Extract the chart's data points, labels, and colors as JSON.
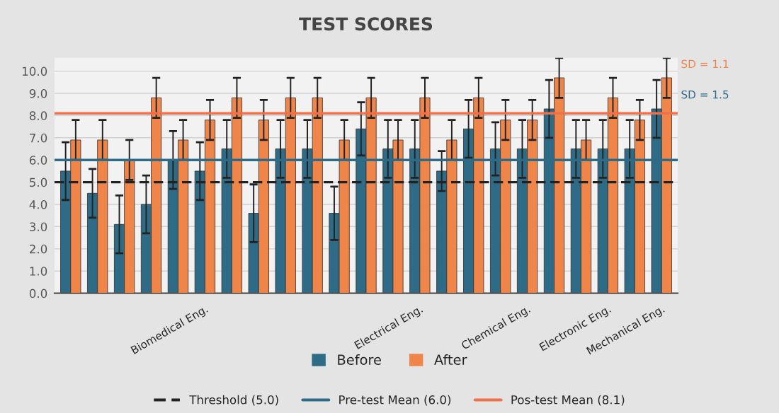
{
  "chart_data": {
    "type": "bar",
    "title": "TEST SCORES",
    "categories": [
      null,
      null,
      null,
      null,
      null,
      "Biomedical Eng.",
      null,
      null,
      null,
      null,
      null,
      null,
      null,
      "Electrical Eng.",
      null,
      null,
      null,
      "Chemical Eng.",
      null,
      null,
      "Electronic Eng.",
      null,
      "Mechanical Eng."
    ],
    "series": [
      {
        "name": "Before",
        "color": "#2e6b87",
        "values": [
          5.5,
          4.5,
          3.1,
          4.0,
          6.0,
          5.5,
          6.5,
          3.6,
          6.5,
          6.5,
          3.6,
          7.4,
          6.5,
          6.5,
          5.5,
          7.4,
          6.5,
          6.5,
          8.3,
          6.5,
          6.5,
          6.5,
          8.3
        ],
        "errors": [
          1.3,
          1.1,
          1.3,
          1.3,
          1.3,
          1.3,
          1.3,
          1.3,
          1.3,
          1.3,
          1.2,
          1.2,
          1.3,
          1.3,
          0.9,
          1.3,
          1.2,
          1.3,
          1.3,
          1.3,
          1.3,
          1.3,
          1.3
        ]
      },
      {
        "name": "After",
        "color": "#f0854a",
        "values": [
          6.9,
          6.9,
          6.0,
          8.8,
          6.9,
          7.8,
          8.8,
          7.8,
          8.8,
          8.8,
          6.9,
          8.8,
          6.9,
          8.8,
          6.9,
          8.8,
          7.8,
          7.8,
          9.7,
          6.9,
          8.8,
          7.8,
          9.7
        ],
        "errors": [
          0.9,
          0.9,
          0.9,
          0.9,
          0.9,
          0.9,
          0.9,
          0.9,
          0.9,
          0.9,
          0.9,
          0.9,
          0.9,
          0.9,
          0.9,
          0.9,
          0.9,
          0.9,
          0.9,
          0.9,
          0.9,
          0.9,
          0.9
        ]
      }
    ],
    "ylim": [
      0,
      10.6
    ],
    "yticks": [
      {
        "value": 0,
        "label": "0.0"
      },
      {
        "value": 1,
        "label": "1.0"
      },
      {
        "value": 2,
        "label": "2.0"
      },
      {
        "value": 3,
        "label": "3.0"
      },
      {
        "value": 4,
        "label": "4.0"
      },
      {
        "value": 5,
        "label": "5.0"
      },
      {
        "value": 6,
        "label": "6.0"
      },
      {
        "value": 7,
        "label": "7.0"
      },
      {
        "value": 8,
        "label": "8.0"
      },
      {
        "value": 9,
        "label": "9.0"
      },
      {
        "value": 10,
        "label": "10.0"
      }
    ],
    "ref_lines": [
      {
        "axis": "y",
        "value": 5.0,
        "label": "Threshold (5.0)",
        "color": "#222222",
        "line_style": "dashed"
      },
      {
        "axis": "y",
        "value": 6.0,
        "label": "Pre-test Mean (6.0)",
        "color": "#2e6b87",
        "line_style": "solid"
      },
      {
        "axis": "y",
        "value": 8.1,
        "label": "Pos-test Mean (8.1)",
        "color": "#f0704a",
        "line_style": "solid"
      }
    ],
    "annotations": [
      "SD = 1.1",
      "SD = 1.5"
    ],
    "grid": "y",
    "legend": "bottom"
  }
}
